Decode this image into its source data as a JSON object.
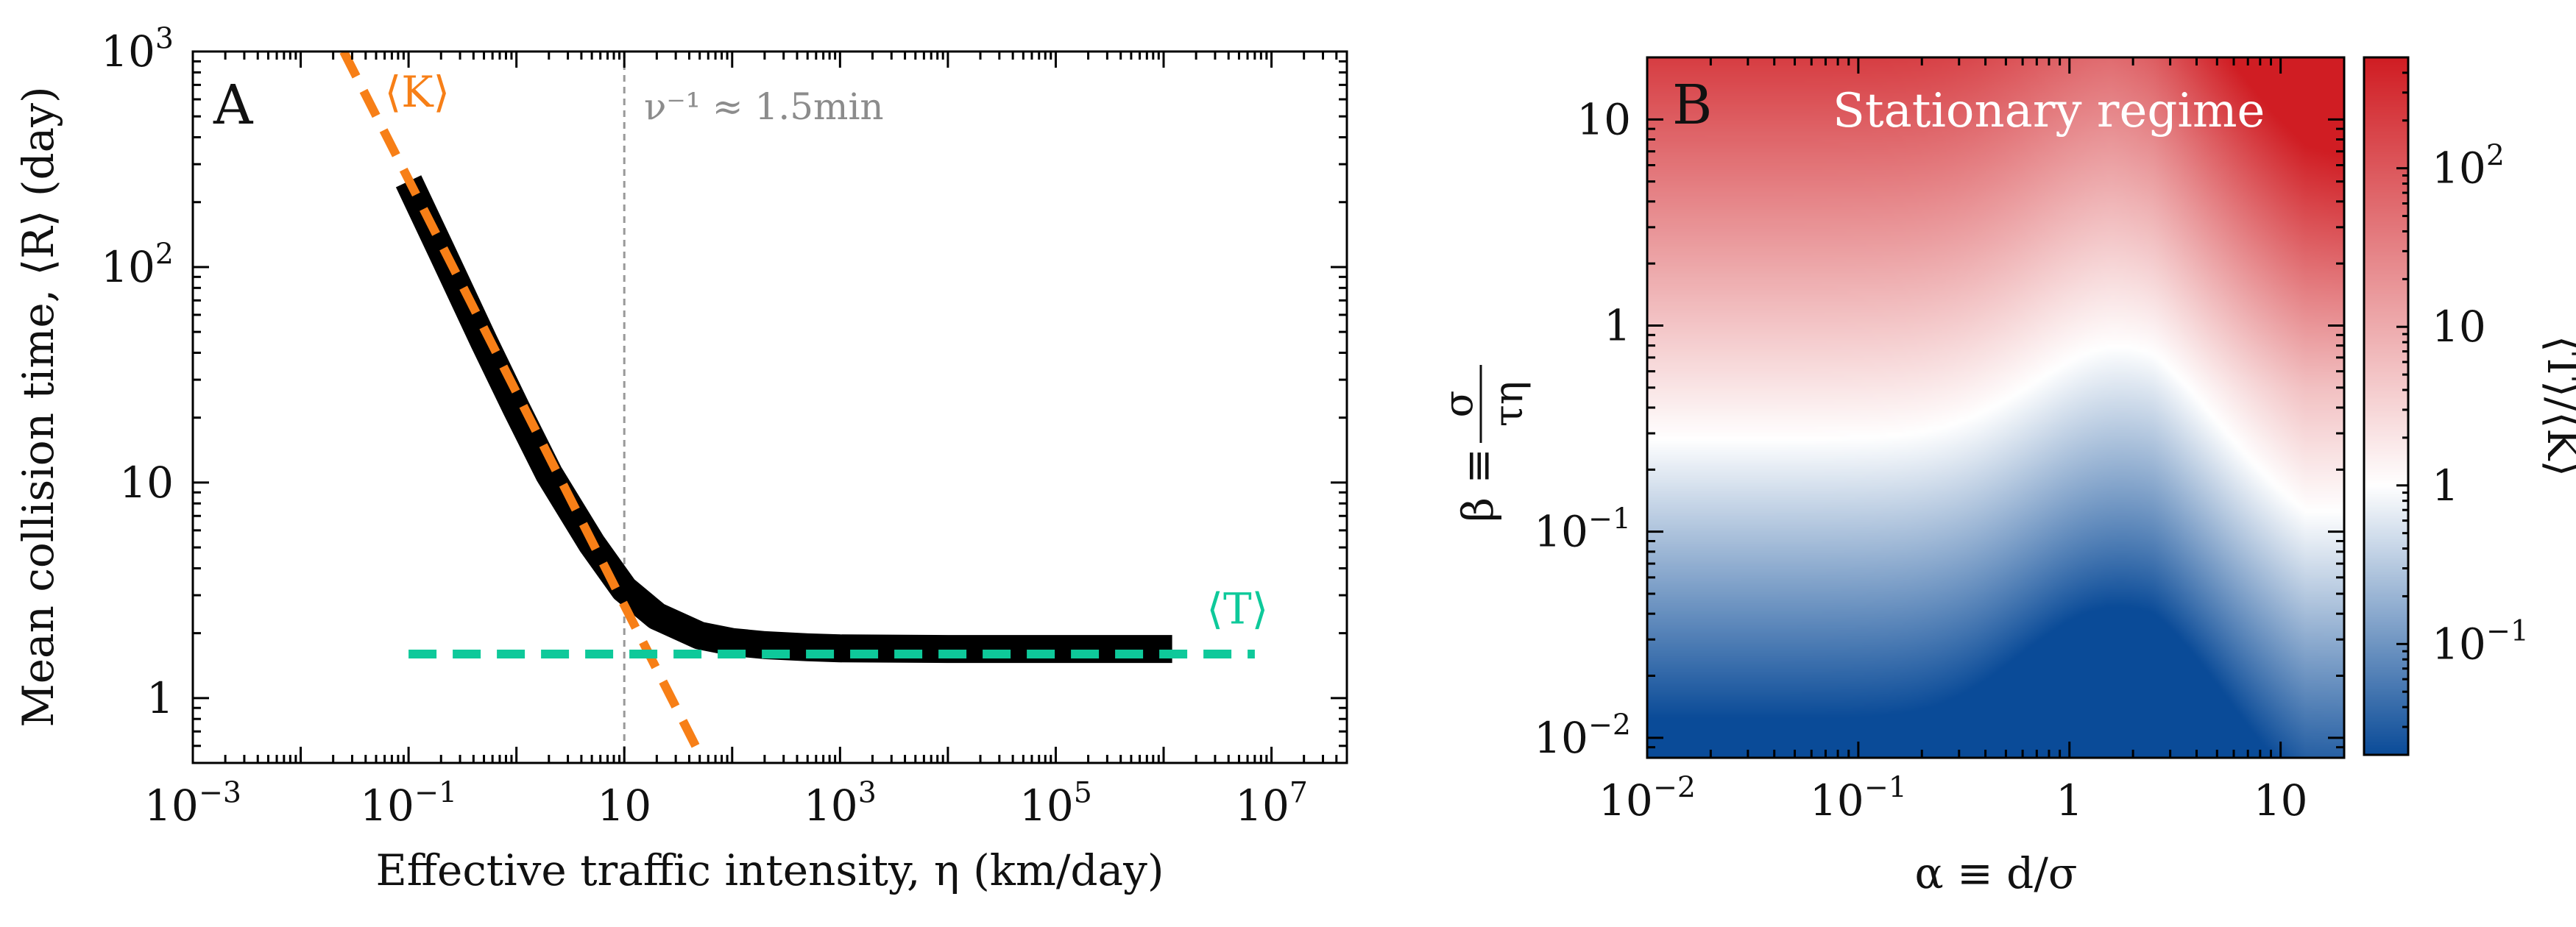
{
  "colors": {
    "data_curve": "#000000",
    "K_color": "#f77f17",
    "T_color": "#0ec99a",
    "guide_color": "#999999",
    "cmap_low": "#0a4b98",
    "cmap_mid": "#ffffff",
    "cmap_high": "#d01d23",
    "annotation_text_B": "#ffffff"
  },
  "chart_data": [
    {
      "type": "line",
      "panel_label": "A",
      "xlabel": "Effective traffic intensity, η (km/day)",
      "ylabel": "Mean collision time, ⟨R⟩ (day)",
      "x_scale": "log",
      "y_scale": "log",
      "xlim": [
        0.001,
        50000000
      ],
      "ylim": [
        0.5,
        1000
      ],
      "x_ticks": [
        {
          "value": 0.001,
          "base": "10",
          "exp": "−3"
        },
        {
          "value": 0.1,
          "base": "10",
          "exp": "−1"
        },
        {
          "value": 10,
          "base": "10",
          "exp": ""
        },
        {
          "value": 1000,
          "base": "10",
          "exp": "3"
        },
        {
          "value": 100000,
          "base": "10",
          "exp": "5"
        },
        {
          "value": 10000000,
          "base": "10",
          "exp": "7"
        }
      ],
      "y_ticks": [
        {
          "value": 1,
          "base": "1",
          "exp": ""
        },
        {
          "value": 10,
          "base": "10",
          "exp": ""
        },
        {
          "value": 100,
          "base": "10",
          "exp": "2"
        },
        {
          "value": 1000,
          "base": "10",
          "exp": "3"
        }
      ],
      "series": [
        {
          "style": "solid-thick",
          "x": [
            0.1,
            0.2,
            0.5,
            1,
            2,
            5,
            10,
            20,
            50,
            100,
            200,
            500,
            1000,
            10000,
            100000,
            1200000
          ],
          "y": [
            250,
            120,
            45,
            22,
            11,
            5.2,
            3.2,
            2.4,
            1.95,
            1.82,
            1.76,
            1.72,
            1.7,
            1.69,
            1.69,
            1.69
          ]
        },
        {
          "name": "⟨K⟩",
          "style": "dashed",
          "x": [
            0.025,
            50
          ],
          "y": [
            1000,
            0.55
          ]
        },
        {
          "name": "⟨T⟩",
          "style": "dashed",
          "x": [
            0.1,
            7000000
          ],
          "y": [
            1.6,
            1.6
          ]
        }
      ],
      "vertical_line": {
        "x": 10,
        "label": "ν⁻¹ ≈ 1.5min"
      },
      "series_labels": [
        {
          "text": "⟨K⟩",
          "x": 0.06,
          "y": 650
        },
        {
          "text": "⟨T⟩",
          "x": 2500000,
          "y": 2.6
        }
      ]
    },
    {
      "type": "heatmap",
      "panel_label": "B",
      "annotation": "Stationary regime",
      "xlabel": "α ≡ d/σ",
      "ylabel_left": "β ≡",
      "ylabel_num": "σ",
      "ylabel_den": "τη",
      "x_scale": "log",
      "y_scale": "log",
      "xlim": [
        0.01,
        20
      ],
      "ylim": [
        0.008,
        20
      ],
      "x_ticks": [
        {
          "value": 0.01,
          "base": "10",
          "exp": "−2"
        },
        {
          "value": 0.1,
          "base": "10",
          "exp": "−1"
        },
        {
          "value": 1,
          "base": "1",
          "exp": ""
        },
        {
          "value": 10,
          "base": "10",
          "exp": ""
        }
      ],
      "y_ticks": [
        {
          "value": 0.01,
          "base": "10",
          "exp": "−2"
        },
        {
          "value": 0.1,
          "base": "10",
          "exp": "−1"
        },
        {
          "value": 1,
          "base": "1",
          "exp": ""
        },
        {
          "value": 10,
          "base": "10",
          "exp": ""
        }
      ],
      "colorbar": {
        "label": "⟨T⟩/⟨K⟩",
        "scale": "log",
        "range": [
          0.02,
          500
        ],
        "ticks": [
          {
            "value": 0.1,
            "base": "10",
            "exp": "−1"
          },
          {
            "value": 1,
            "base": "1",
            "exp": ""
          },
          {
            "value": 10,
            "base": "10",
            "exp": ""
          },
          {
            "value": 100,
            "base": "10",
            "exp": "2"
          }
        ]
      }
    }
  ]
}
